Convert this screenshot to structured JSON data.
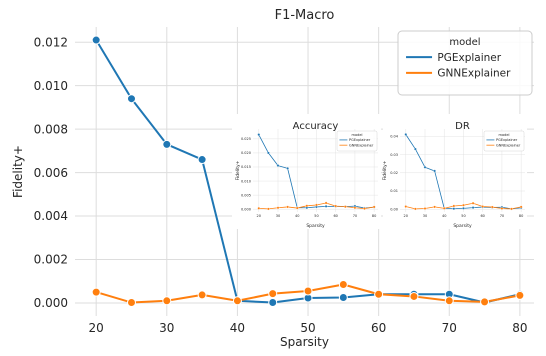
{
  "chart_data": [
    {
      "role": "main",
      "type": "line",
      "title": "F1-Macro",
      "xlabel": "Sparsity",
      "ylabel": "Fidelity+",
      "x_ticks": [
        "20",
        "30",
        "40",
        "50",
        "60",
        "70",
        "80"
      ],
      "y_ticks": [
        "0.000",
        "0.002",
        "0.004",
        "0.006",
        "0.008",
        "0.010",
        "0.012"
      ],
      "xlim": [
        17,
        82
      ],
      "ylim": [
        -0.0006,
        0.0127
      ],
      "grid": true,
      "legend": {
        "title": "model",
        "placement": "top-right"
      },
      "x": [
        20,
        25,
        30,
        35,
        40,
        45,
        50,
        55,
        60,
        65,
        70,
        75,
        80
      ],
      "series": [
        {
          "name": "PGExplainer",
          "color": "#1f77b4",
          "values": [
            0.0121,
            0.0094,
            0.0073,
            0.0066,
            0.0001,
            2e-05,
            0.00023,
            0.00025,
            0.0004,
            0.0004,
            0.0004,
            2e-05,
            0.0004
          ]
        },
        {
          "name": "GNNExplainer",
          "color": "#ff7f0e",
          "values": [
            0.0005,
            2e-05,
            0.0001,
            0.00037,
            0.0001,
            0.00043,
            0.00055,
            0.00085,
            0.0004,
            0.0003,
            0.0001,
            5e-05,
            0.00035
          ]
        }
      ]
    },
    {
      "role": "inset",
      "type": "line",
      "title": "Accuracy",
      "xlabel": "Sparsity",
      "ylabel": "Fidelity+",
      "x_ticks": [
        "20",
        "30",
        "40",
        "50",
        "60",
        "70",
        "80"
      ],
      "y_ticks": [
        "0.000",
        "0.005",
        "0.010",
        "0.015",
        "0.020",
        "0.025"
      ],
      "xlim": [
        17,
        82
      ],
      "ylim": [
        -0.001,
        0.0285
      ],
      "grid": true,
      "legend": {
        "title": "model",
        "placement": "top-right"
      },
      "x": [
        20,
        25,
        30,
        35,
        40,
        45,
        50,
        55,
        60,
        65,
        70,
        75,
        80
      ],
      "series": [
        {
          "name": "PGExplainer",
          "color": "#1f77b4",
          "values": [
            0.0265,
            0.02,
            0.0155,
            0.0145,
            0.0005,
            0.0005,
            0.0008,
            0.001,
            0.001,
            0.0009,
            0.0011,
            0.0004,
            0.0007
          ]
        },
        {
          "name": "GNNExplainer",
          "color": "#ff7f0e",
          "values": [
            0.0003,
            0.0001,
            0.0005,
            0.0008,
            0.0004,
            0.0012,
            0.0015,
            0.0022,
            0.0011,
            0.0009,
            0.0005,
            0.0002,
            0.0008
          ]
        }
      ]
    },
    {
      "role": "inset",
      "type": "line",
      "title": "DR",
      "xlabel": "Sparsity",
      "ylabel": "Fidelity+",
      "x_ticks": [
        "20",
        "30",
        "40",
        "50",
        "60",
        "70",
        "80"
      ],
      "y_ticks": [
        "0.00",
        "0.01",
        "0.02",
        "0.03",
        "0.04"
      ],
      "xlim": [
        17,
        82
      ],
      "ylim": [
        -0.0015,
        0.044
      ],
      "grid": true,
      "legend": {
        "title": "model",
        "placement": "top-right"
      },
      "x": [
        20,
        25,
        30,
        35,
        40,
        45,
        50,
        55,
        60,
        65,
        70,
        75,
        80
      ],
      "series": [
        {
          "name": "PGExplainer",
          "color": "#1f77b4",
          "values": [
            0.041,
            0.033,
            0.023,
            0.021,
            0.0005,
            0.0003,
            0.0005,
            0.0009,
            0.0012,
            0.001,
            0.0011,
            0.0002,
            0.0008
          ]
        },
        {
          "name": "GNNExplainer",
          "color": "#ff7f0e",
          "values": [
            0.0015,
            0.0002,
            0.0004,
            0.0013,
            0.0005,
            0.0018,
            0.0022,
            0.0033,
            0.0015,
            0.0012,
            0.0004,
            0.0002,
            0.0013
          ]
        }
      ]
    }
  ]
}
